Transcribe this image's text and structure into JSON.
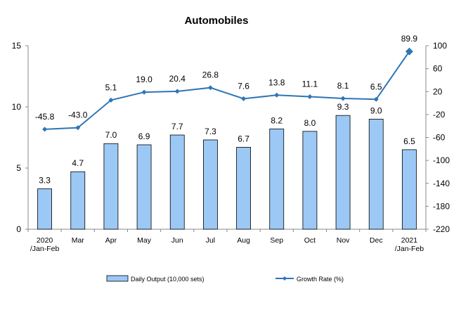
{
  "chart_data": {
    "type": "bar",
    "title": "Automobiles",
    "categories": [
      [
        "2020",
        "/Jan-Feb"
      ],
      [
        "Mar"
      ],
      [
        "Apr"
      ],
      [
        "May"
      ],
      [
        "Jun"
      ],
      [
        "Jul"
      ],
      [
        "Aug"
      ],
      [
        "Sep"
      ],
      [
        "Oct"
      ],
      [
        "Nov"
      ],
      [
        "Dec"
      ],
      [
        "2021",
        "/Jan-Feb"
      ]
    ],
    "series": [
      {
        "name": "Daily Output (10,000 sets)",
        "type": "bar",
        "axis": "left",
        "values": [
          3.3,
          4.7,
          7.0,
          6.9,
          7.7,
          7.3,
          6.7,
          8.2,
          8.0,
          9.3,
          9.0,
          6.5
        ],
        "labels": [
          "3.3",
          "4.7",
          "7.0",
          "6.9",
          "7.7",
          "7.3",
          "6.7",
          "8.2",
          "8.0",
          "9.3",
          "9.0",
          "6.5"
        ],
        "color": "#9CC8F5"
      },
      {
        "name": "Growth Rate (%)",
        "type": "line",
        "axis": "right",
        "values": [
          -45.8,
          -43.0,
          5.1,
          19.0,
          20.4,
          26.8,
          7.6,
          13.8,
          11.1,
          8.1,
          6.5,
          89.9
        ],
        "labels": [
          "-45.8",
          "-43.0",
          "5.1",
          "19.0",
          "20.4",
          "26.8",
          "7.6",
          "13.8",
          "11.1",
          "8.1",
          "6.5",
          "89.9"
        ],
        "color": "#2E75B6"
      }
    ],
    "y_left": {
      "min": 0,
      "max": 15,
      "ticks": [
        0,
        5,
        10,
        15
      ]
    },
    "y_right": {
      "min": -220,
      "max": 100,
      "ticks": [
        -220,
        -180,
        -140,
        -100,
        -60,
        -20,
        20,
        60,
        100
      ]
    },
    "grid": false,
    "legend_position": "bottom"
  }
}
